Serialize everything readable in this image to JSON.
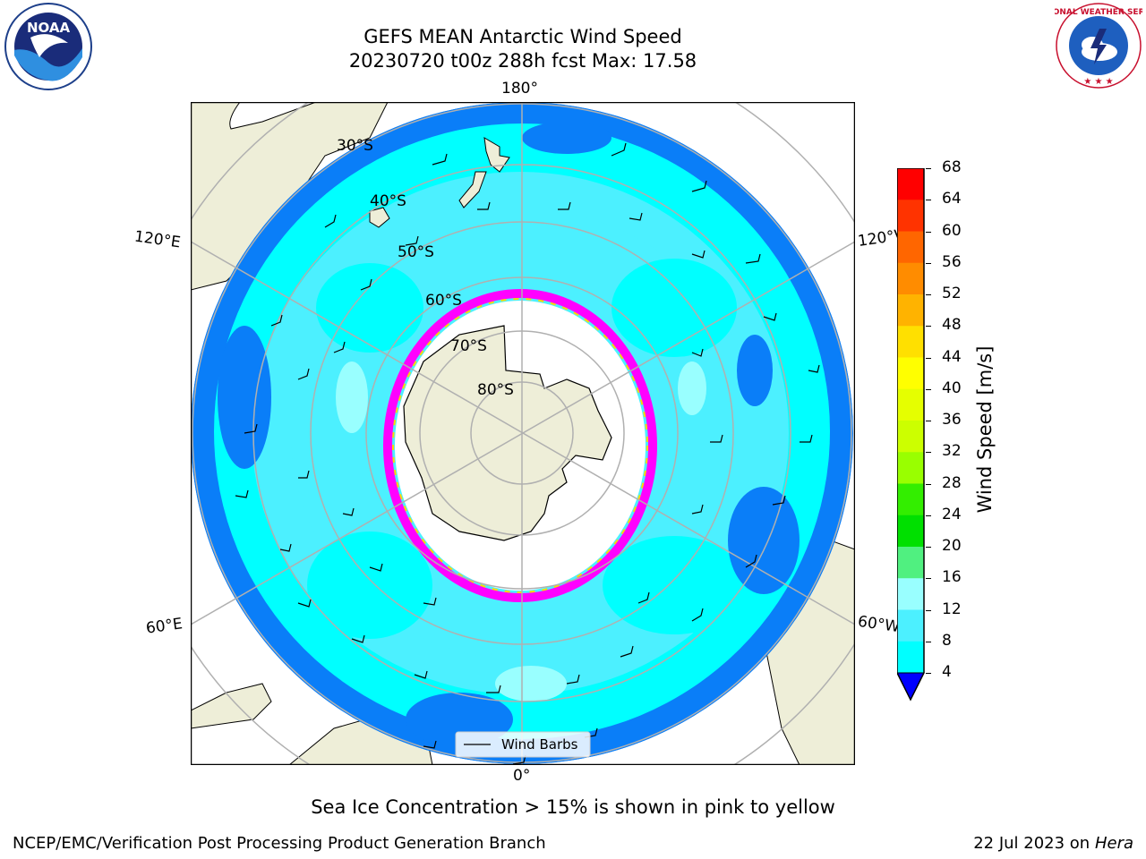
{
  "header": {
    "title_line1": "GEFS MEAN Antarctic Wind Speed",
    "title_line2": "20230720 t00z 288h fcst   Max: 17.58"
  },
  "logos": {
    "left": {
      "name": "noaa-logo",
      "text": "NOAA"
    },
    "right": {
      "name": "nws-logo",
      "text": "NATIONAL WEATHER SERVICE"
    }
  },
  "map": {
    "longitude_labels": {
      "top": "180°",
      "bottom": "0°",
      "upper_left": "120°E",
      "upper_right": "120°W",
      "lower_left": "60°E",
      "lower_right": "60°W"
    },
    "latitude_labels": [
      "30°S",
      "40°S",
      "50°S",
      "60°S",
      "70°S",
      "80°S"
    ],
    "legend_label": "Wind Barbs",
    "colors": {
      "land": "#eeeed8",
      "speed_4_8": "#0a7ef8",
      "speed_8_12": "#00ffff",
      "speed_12_16": "#4cf0ff",
      "speed_16_20": "#99ffff",
      "sea_ice_low": "#ff00ff",
      "sea_ice_high": "#ffd700",
      "grid": "#b0b0b0"
    }
  },
  "colorbar": {
    "label": "Wind Speed [m/s]",
    "ticks": [
      "68",
      "64",
      "60",
      "56",
      "52",
      "48",
      "44",
      "40",
      "36",
      "32",
      "28",
      "24",
      "20",
      "16",
      "12",
      "8",
      "4"
    ],
    "colors_top_to_bottom": [
      "#ff0000",
      "#ff3300",
      "#ff6600",
      "#ff8c00",
      "#ffb300",
      "#ffe000",
      "#ffff00",
      "#e5ff00",
      "#ccff00",
      "#99ff00",
      "#33ee00",
      "#00e000",
      "#50f080",
      "#99ffff",
      "#4cf0ff",
      "#00ffff",
      "#0a7ef8"
    ],
    "extend_color": "#0000ff"
  },
  "notes": {
    "sea_ice": "Sea Ice Concentration > 15% is shown in pink to yellow"
  },
  "footer": {
    "left": "NCEP/EMC/Verification Post Processing Product Generation Branch",
    "right_date": "22 Jul 2023 on ",
    "right_host": "Hera"
  }
}
